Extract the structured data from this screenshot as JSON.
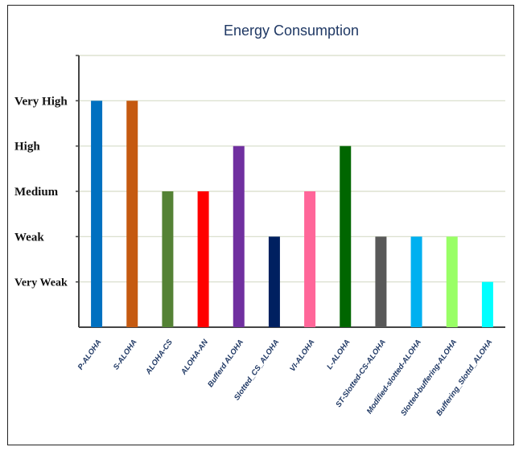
{
  "chart_data": {
    "type": "bar",
    "title": "Energy Consumption",
    "categories": [
      "P-ALOHA",
      "S-ALOHA",
      "ALOHA-CS",
      "ALOHA-AN",
      "Bufferd ALOHA",
      "Slotted_CS_ALOHA",
      "VI-ALOHA",
      "L-ALOHA",
      "ST-Slotted-CS-ALOHA",
      "Modified-slotted-ALOHA",
      "Slotted-buffering-ALOHA",
      "Buffering_Slottd_ALOHA"
    ],
    "values": [
      5,
      5,
      3,
      3,
      4,
      2,
      3,
      4,
      2,
      2,
      2,
      1
    ],
    "colors": [
      "#0070c0",
      "#c55a11",
      "#548235",
      "#ff0000",
      "#7030a0",
      "#002060",
      "#ff6699",
      "#006600",
      "#595959",
      "#00b0f0",
      "#99ff66",
      "#00ffff"
    ],
    "y_levels": [
      {
        "value": 1,
        "label": "Very Weak"
      },
      {
        "value": 2,
        "label": "Weak"
      },
      {
        "value": 3,
        "label": "Medium"
      },
      {
        "value": 4,
        "label": "High"
      },
      {
        "value": 5,
        "label": "Very High"
      }
    ],
    "ylim": [
      0,
      6
    ],
    "grid": true,
    "legend": "none"
  }
}
